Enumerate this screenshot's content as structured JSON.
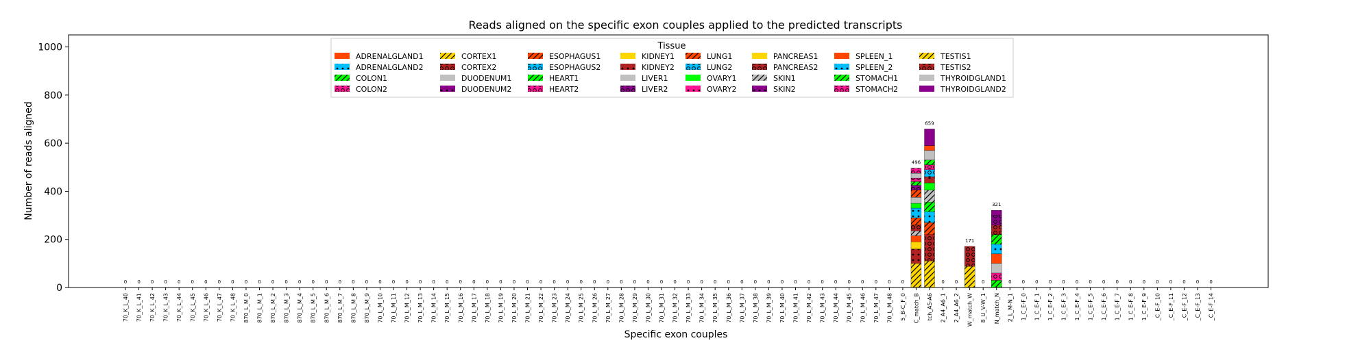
{
  "chart_data": {
    "type": "bar",
    "stacked": true,
    "title": "Reads aligned on the specific exon couples applied to the predicted transcripts",
    "xlabel": "Specific exon couples",
    "ylabel": "Number of reads aligned",
    "ylim": [
      0,
      1050
    ],
    "yticks": [
      0,
      200,
      400,
      600,
      800,
      1000
    ],
    "grid": false,
    "legend": {
      "title": "Tissue",
      "placement": "upper-center",
      "columns": 8,
      "entries": [
        {
          "name": "ADRENALGLAND1",
          "color": "#ff4500",
          "hatch": "none"
        },
        {
          "name": "ADRENALGLAND2",
          "color": "#00bfff",
          "hatch": "dots"
        },
        {
          "name": "COLON1",
          "color": "#00ff00",
          "hatch": "slash"
        },
        {
          "name": "COLON2",
          "color": "#ff1493",
          "hatch": "circles"
        },
        {
          "name": "CORTEX1",
          "color": "#ffd700",
          "hatch": "slash"
        },
        {
          "name": "CORTEX2",
          "color": "#b22222",
          "hatch": "circles"
        },
        {
          "name": "DUODENUM1",
          "color": "#c0c0c0",
          "hatch": "none"
        },
        {
          "name": "DUODENUM2",
          "color": "#8b008b",
          "hatch": "dots"
        },
        {
          "name": "ESOPHAGUS1",
          "color": "#ff4500",
          "hatch": "slash"
        },
        {
          "name": "ESOPHAGUS2",
          "color": "#00bfff",
          "hatch": "circles"
        },
        {
          "name": "HEART1",
          "color": "#00ff00",
          "hatch": "slash"
        },
        {
          "name": "HEART2",
          "color": "#ff1493",
          "hatch": "circles"
        },
        {
          "name": "KIDNEY1",
          "color": "#ffd700",
          "hatch": "none"
        },
        {
          "name": "KIDNEY2",
          "color": "#b22222",
          "hatch": "dots"
        },
        {
          "name": "LIVER1",
          "color": "#c0c0c0",
          "hatch": "none"
        },
        {
          "name": "LIVER2",
          "color": "#8b008b",
          "hatch": "circles"
        },
        {
          "name": "LUNG1",
          "color": "#ff4500",
          "hatch": "slash"
        },
        {
          "name": "LUNG2",
          "color": "#00bfff",
          "hatch": "circles"
        },
        {
          "name": "OVARY1",
          "color": "#00ff00",
          "hatch": "none"
        },
        {
          "name": "OVARY2",
          "color": "#ff1493",
          "hatch": "dots"
        },
        {
          "name": "PANCREAS1",
          "color": "#ffd700",
          "hatch": "none"
        },
        {
          "name": "PANCREAS2",
          "color": "#b22222",
          "hatch": "circles"
        },
        {
          "name": "SKIN1",
          "color": "#c0c0c0",
          "hatch": "slash"
        },
        {
          "name": "SKIN2",
          "color": "#8b008b",
          "hatch": "dots"
        },
        {
          "name": "SPLEEN_1",
          "color": "#ff4500",
          "hatch": "none"
        },
        {
          "name": "SPLEEN_2",
          "color": "#00bfff",
          "hatch": "dots"
        },
        {
          "name": "STOMACH1",
          "color": "#00ff00",
          "hatch": "slash"
        },
        {
          "name": "STOMACH2",
          "color": "#ff1493",
          "hatch": "circles"
        },
        {
          "name": "TESTIS1",
          "color": "#ffd700",
          "hatch": "slash"
        },
        {
          "name": "TESTIS2",
          "color": "#b22222",
          "hatch": "circles"
        },
        {
          "name": "THYROIDGLAND1",
          "color": "#c0c0c0",
          "hatch": "none"
        },
        {
          "name": "THYROIDGLAND2",
          "color": "#8b008b",
          "hatch": "none"
        }
      ]
    },
    "categories": [
      "70_K_L_40",
      "70_K_L_41",
      "70_K_L_42",
      "70_K_L_43",
      "70_K_L_44",
      "70_K_L_45",
      "70_K_L_46",
      "70_K_L_47",
      "70_K_L_48",
      "870_L_M_0",
      "870_L_M_1",
      "870_L_M_2",
      "870_L_M_3",
      "870_L_M_4",
      "870_L_M_5",
      "870_L_M_6",
      "870_L_M_7",
      "870_L_M_8",
      "870_L_M_9",
      "70_L_M_10",
      "70_L_M_11",
      "70_L_M_12",
      "70_L_M_13",
      "70_L_M_14",
      "70_L_M_15",
      "70_L_M_16",
      "70_L_M_17",
      "70_L_M_18",
      "70_L_M_19",
      "70_L_M_20",
      "70_L_M_21",
      "70_L_M_22",
      "70_L_M_23",
      "70_L_M_24",
      "70_L_M_25",
      "70_L_M_26",
      "70_L_M_27",
      "70_L_M_28",
      "70_L_M_29",
      "70_L_M_30",
      "70_L_M_31",
      "70_L_M_32",
      "70_L_M_33",
      "70_L_M_34",
      "70_L_M_35",
      "70_L_M_36",
      "70_L_M_37",
      "70_L_M_38",
      "70_L_M_39",
      "70_L_M_40",
      "70_L_M_41",
      "70_L_M_42",
      "70_L_M_43",
      "70_L_M_44",
      "70_L_M_45",
      "70_L_M_46",
      "70_L_M_47",
      "70_L_M_48",
      "5_B-C_F_0",
      "C_match_B",
      "tch_A5-A6",
      "2_A4_A6_1",
      "2_A4_A6_2",
      "W_match_W",
      "8_U_V-W_1",
      "N_match_N",
      "2_L_M-N_1",
      "1_C_E-F_0",
      "1_C_E-F_1",
      "1_C_E-F_2",
      "1_C_E-F_3",
      "1_C_E-F_4",
      "1_C_E-F_5",
      "1_C_E-F_6",
      "1_C_E-F_7",
      "1_C_E-F_8",
      "1_C_E-F_9",
      "_C_E-F_10",
      "_C_E-F_11",
      "_C_E-F_12",
      "_C_E-F_13",
      "_C_E-F_14"
    ],
    "totals": [
      0,
      0,
      0,
      0,
      0,
      0,
      0,
      0,
      0,
      0,
      0,
      0,
      0,
      0,
      0,
      0,
      0,
      0,
      0,
      0,
      0,
      0,
      0,
      0,
      0,
      0,
      0,
      0,
      0,
      0,
      0,
      0,
      0,
      0,
      0,
      0,
      0,
      0,
      0,
      0,
      0,
      0,
      0,
      0,
      0,
      0,
      0,
      0,
      0,
      0,
      0,
      0,
      0,
      0,
      0,
      0,
      0,
      0,
      0,
      496,
      659,
      0,
      0,
      171,
      0,
      321,
      0,
      0,
      0,
      0,
      0,
      0,
      0,
      0,
      0,
      0,
      0,
      0,
      0,
      0,
      0,
      0
    ],
    "total_labels": [
      "0",
      "0",
      "0",
      "0",
      "0",
      "0",
      "0",
      "0",
      "0",
      "0",
      "0",
      "0",
      "0",
      "0",
      "0",
      "0",
      "0",
      "0",
      "0",
      "0",
      "0",
      "0",
      "0",
      "0",
      "0",
      "0",
      "0",
      "0",
      "0",
      "0",
      "0",
      "0",
      "0",
      "0",
      "0",
      "0",
      "0",
      "0",
      "0",
      "0",
      "0",
      "0",
      "0",
      "0",
      "0",
      "0",
      "0",
      "0",
      "0",
      "0",
      "0",
      "0",
      "0",
      "0",
      "0",
      "0",
      "0",
      "0",
      "0",
      "496",
      "659",
      "0",
      "0",
      "171",
      "0",
      "321",
      "0",
      "0",
      "0",
      "0",
      "0",
      "0",
      "0",
      "0",
      "0",
      "0",
      "0",
      "0",
      "0",
      "0",
      "0",
      "0"
    ],
    "stacks": {
      "C_match_B": [
        {
          "tissue": "TESTIS1",
          "value": 100
        },
        {
          "tissue": "KIDNEY2",
          "value": 60
        },
        {
          "tissue": "PANCREAS1",
          "value": 30
        },
        {
          "tissue": "SPLEEN_1",
          "value": 25
        },
        {
          "tissue": "SKIN1",
          "value": 20
        },
        {
          "tissue": "CORTEX2",
          "value": 25
        },
        {
          "tissue": "LUNG1",
          "value": 30
        },
        {
          "tissue": "ADRENALGLAND2",
          "value": 40
        },
        {
          "tissue": "OVARY1",
          "value": 20
        },
        {
          "tissue": "DUODENUM1",
          "value": 25
        },
        {
          "tissue": "ESOPHAGUS1",
          "value": 30
        },
        {
          "tissue": "LIVER2",
          "value": 20
        },
        {
          "tissue": "HEART1",
          "value": 15
        },
        {
          "tissue": "COLON2",
          "value": 15
        },
        {
          "tissue": "THYROIDGLAND1",
          "value": 20
        },
        {
          "tissue": "STOMACH2",
          "value": 21
        }
      ],
      "tch_A5-A6": [
        {
          "tissue": "TESTIS1",
          "value": 110
        },
        {
          "tissue": "CORTEX2",
          "value": 110
        },
        {
          "tissue": "ESOPHAGUS1",
          "value": 50
        },
        {
          "tissue": "ADRENALGLAND2",
          "value": 45
        },
        {
          "tissue": "HEART1",
          "value": 40
        },
        {
          "tissue": "SKIN1",
          "value": 50
        },
        {
          "tissue": "OVARY1",
          "value": 30
        },
        {
          "tissue": "KIDNEY2",
          "value": 25
        },
        {
          "tissue": "LUNG2",
          "value": 30
        },
        {
          "tissue": "COLON2",
          "value": 20
        },
        {
          "tissue": "STOMACH1",
          "value": 20
        },
        {
          "tissue": "DUODENUM1",
          "value": 40
        },
        {
          "tissue": "SPLEEN_1",
          "value": 20
        },
        {
          "tissue": "THYROIDGLAND2",
          "value": 69
        }
      ],
      "W_match_W": [
        {
          "tissue": "TESTIS1",
          "value": 88
        },
        {
          "tissue": "CORTEX2",
          "value": 83
        }
      ],
      "N_match_N": [
        {
          "tissue": "HEART1",
          "value": 30
        },
        {
          "tissue": "COLON2",
          "value": 30
        },
        {
          "tissue": "THYROIDGLAND1",
          "value": 40
        },
        {
          "tissue": "SPLEEN_1",
          "value": 40
        },
        {
          "tissue": "ADRENALGLAND2",
          "value": 40
        },
        {
          "tissue": "STOMACH1",
          "value": 40
        },
        {
          "tissue": "CORTEX2",
          "value": 40
        },
        {
          "tissue": "LIVER2",
          "value": 41
        },
        {
          "tissue": "THYROIDGLAND2",
          "value": 20
        }
      ]
    }
  }
}
